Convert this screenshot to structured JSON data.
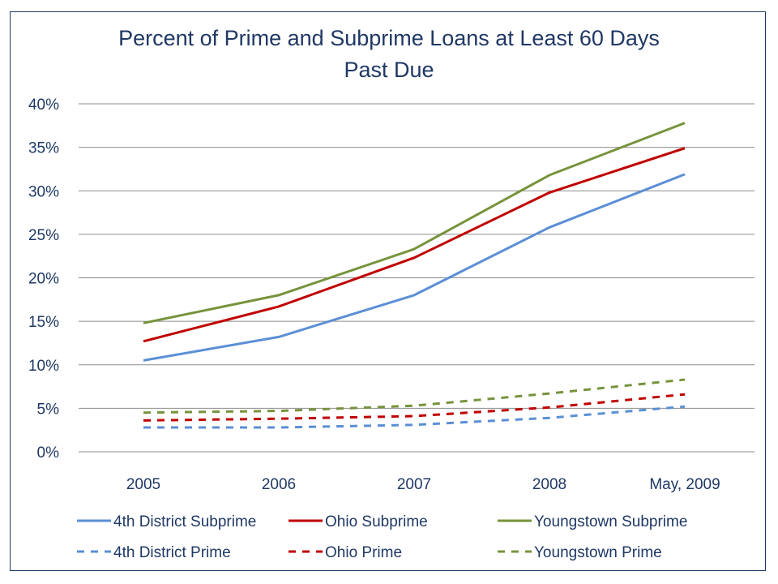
{
  "chart_data": {
    "type": "line",
    "title_lines": [
      "Percent of Prime and Subprime Loans at Least 60 Days",
      "Past Due"
    ],
    "categories": [
      "2005",
      "2006",
      "2007",
      "2008",
      "May, 2009"
    ],
    "ylim": [
      0,
      40
    ],
    "yticks": [
      0,
      5,
      10,
      15,
      20,
      25,
      30,
      35,
      40
    ],
    "ytick_labels": [
      "0%",
      "5%",
      "10%",
      "15%",
      "20%",
      "25%",
      "30%",
      "35%",
      "40%"
    ],
    "grid": true,
    "legend_position": "bottom",
    "series": [
      {
        "name": "4th District Subprime",
        "color": "#5b8fd6",
        "dashed": false,
        "values": [
          10.5,
          13.2,
          18.0,
          25.8,
          31.9
        ]
      },
      {
        "name": "Ohio Subprime",
        "color": "#c00000",
        "dashed": false,
        "values": [
          12.7,
          16.7,
          22.3,
          29.8,
          34.9
        ]
      },
      {
        "name": "Youngstown Subprime",
        "color": "#77933c",
        "dashed": false,
        "values": [
          14.8,
          18.0,
          23.3,
          31.8,
          37.8
        ]
      },
      {
        "name": "4th District Prime",
        "color": "#5b8fd6",
        "dashed": true,
        "values": [
          2.8,
          2.8,
          3.1,
          3.9,
          5.2
        ]
      },
      {
        "name": "Ohio Prime",
        "color": "#c00000",
        "dashed": true,
        "values": [
          3.6,
          3.8,
          4.1,
          5.1,
          6.6
        ]
      },
      {
        "name": "Youngstown Prime",
        "color": "#77933c",
        "dashed": true,
        "values": [
          4.5,
          4.7,
          5.3,
          6.7,
          8.3
        ]
      }
    ]
  }
}
